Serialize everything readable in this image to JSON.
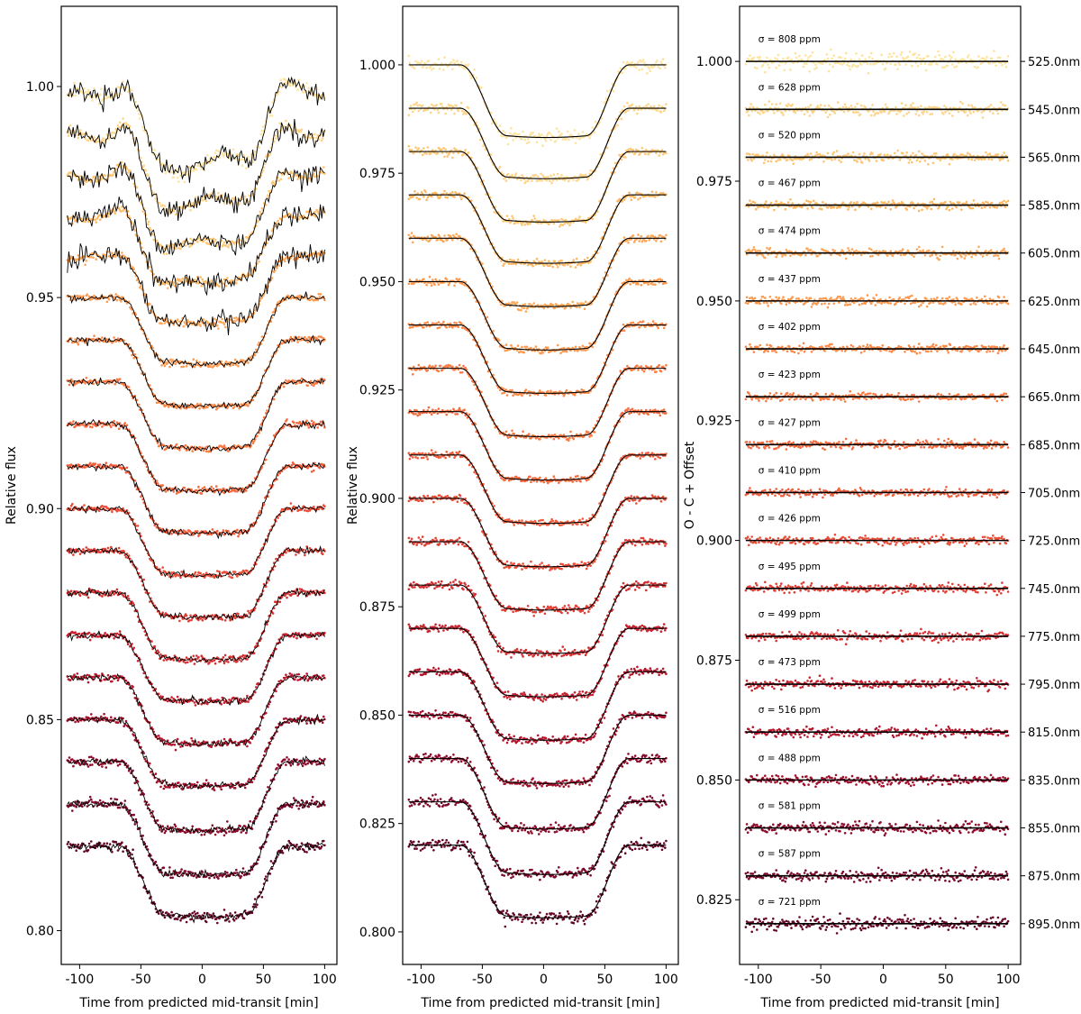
{
  "chart_data": [
    {
      "type": "scatter",
      "title": "",
      "xlabel": "Time from predicted mid-transit [min]",
      "ylabel": "Relative flux",
      "xlim": [
        -115,
        110
      ],
      "ylim": [
        0.792,
        1.019
      ],
      "x_range": [
        -110,
        100
      ],
      "xticks": [
        -100,
        -50,
        0,
        50,
        100
      ],
      "yticks": [
        0.8,
        0.85,
        0.9,
        0.95,
        1.0
      ],
      "ytick_labels": [
        "0.80",
        "0.85",
        "0.90",
        "0.95",
        "1.00"
      ],
      "panel": "raw",
      "grid": false,
      "transit": {
        "t1": -68,
        "t2": -30,
        "t3": 35,
        "t4": 70
      },
      "series": [
        {
          "wavelength_nm": 525,
          "baseline": 1.0,
          "depth": 0.017,
          "color": "#fde3a0"
        },
        {
          "wavelength_nm": 545,
          "baseline": 0.99,
          "depth": 0.0165,
          "color": "#fdd48a"
        },
        {
          "wavelength_nm": 565,
          "baseline": 0.98,
          "depth": 0.0165,
          "color": "#fdc674"
        },
        {
          "wavelength_nm": 585,
          "baseline": 0.97,
          "depth": 0.016,
          "color": "#fdb863"
        },
        {
          "wavelength_nm": 605,
          "baseline": 0.96,
          "depth": 0.016,
          "color": "#fca85a"
        },
        {
          "wavelength_nm": 625,
          "baseline": 0.95,
          "depth": 0.016,
          "color": "#fc9a51"
        },
        {
          "wavelength_nm": 645,
          "baseline": 0.94,
          "depth": 0.016,
          "color": "#fb8a49"
        },
        {
          "wavelength_nm": 665,
          "baseline": 0.93,
          "depth": 0.016,
          "color": "#f97b43"
        },
        {
          "wavelength_nm": 685,
          "baseline": 0.92,
          "depth": 0.016,
          "color": "#f66b3e"
        },
        {
          "wavelength_nm": 705,
          "baseline": 0.91,
          "depth": 0.016,
          "color": "#f15c3a"
        },
        {
          "wavelength_nm": 725,
          "baseline": 0.9,
          "depth": 0.016,
          "color": "#ea4d37"
        },
        {
          "wavelength_nm": 745,
          "baseline": 0.89,
          "depth": 0.016,
          "color": "#e03e35"
        },
        {
          "wavelength_nm": 775,
          "baseline": 0.88,
          "depth": 0.016,
          "color": "#d53032"
        },
        {
          "wavelength_nm": 795,
          "baseline": 0.87,
          "depth": 0.016,
          "color": "#c62330"
        },
        {
          "wavelength_nm": 815,
          "baseline": 0.86,
          "depth": 0.016,
          "color": "#b5182e"
        },
        {
          "wavelength_nm": 835,
          "baseline": 0.85,
          "depth": 0.016,
          "color": "#a2102c"
        },
        {
          "wavelength_nm": 855,
          "baseline": 0.84,
          "depth": 0.0165,
          "color": "#8e0b2b"
        },
        {
          "wavelength_nm": 875,
          "baseline": 0.83,
          "depth": 0.017,
          "color": "#7a0829"
        },
        {
          "wavelength_nm": 895,
          "baseline": 0.82,
          "depth": 0.017,
          "color": "#650626"
        }
      ]
    },
    {
      "type": "scatter",
      "title": "",
      "xlabel": "Time from predicted mid-transit [min]",
      "ylabel": "Relative flux",
      "xlim": [
        -115,
        110
      ],
      "ylim": [
        0.7925,
        1.0135
      ],
      "x_range": [
        -110,
        100
      ],
      "xticks": [
        -100,
        -50,
        0,
        50,
        100
      ],
      "yticks": [
        0.8,
        0.825,
        0.85,
        0.875,
        0.9,
        0.925,
        0.95,
        0.975,
        1.0
      ],
      "ytick_labels": [
        "0.800",
        "0.825",
        "0.850",
        "0.875",
        "0.900",
        "0.925",
        "0.950",
        "0.975",
        "1.000"
      ],
      "panel": "detrended",
      "grid": false,
      "transit": {
        "t1": -68,
        "t2": -30,
        "t3": 35,
        "t4": 70
      },
      "depths": [
        0.017,
        0.0165,
        0.0165,
        0.016,
        0.016,
        0.016,
        0.016,
        0.016,
        0.016,
        0.016,
        0.016,
        0.016,
        0.016,
        0.016,
        0.016,
        0.016,
        0.0165,
        0.017,
        0.017
      ]
    },
    {
      "type": "scatter",
      "title": "",
      "xlabel": "Time from predicted mid-transit [min]",
      "ylabel": "O - C + Offset",
      "xlim": [
        -115,
        110
      ],
      "ylim": [
        0.8115,
        1.0115
      ],
      "x_range": [
        -110,
        100
      ],
      "xticks": [
        -100,
        -50,
        0,
        50,
        100
      ],
      "yticks": [
        0.825,
        0.85,
        0.875,
        0.9,
        0.925,
        0.95,
        0.975,
        1.0
      ],
      "ytick_labels": [
        "0.825",
        "0.850",
        "0.875",
        "0.900",
        "0.925",
        "0.950",
        "0.975",
        "1.000"
      ],
      "panel": "residuals",
      "grid": false,
      "sigma_ppm": [
        808,
        628,
        520,
        467,
        474,
        437,
        402,
        423,
        427,
        410,
        426,
        495,
        499,
        473,
        516,
        488,
        581,
        587,
        721
      ],
      "sigma_labels": [
        "σ = 808 ppm",
        "σ = 628 ppm",
        "σ = 520 ppm",
        "σ = 467 ppm",
        "σ = 474 ppm",
        "σ = 437 ppm",
        "σ = 402 ppm",
        "σ = 423 ppm",
        "σ = 427 ppm",
        "σ = 410 ppm",
        "σ = 426 ppm",
        "σ = 495 ppm",
        "σ = 499 ppm",
        "σ = 473 ppm",
        "σ = 516 ppm",
        "σ = 488 ppm",
        "σ = 581 ppm",
        "σ = 587 ppm",
        "σ = 721 ppm"
      ],
      "wavelength_labels": [
        "525.0nm",
        "545.0nm",
        "565.0nm",
        "585.0nm",
        "605.0nm",
        "625.0nm",
        "645.0nm",
        "665.0nm",
        "685.0nm",
        "705.0nm",
        "725.0nm",
        "745.0nm",
        "775.0nm",
        "795.0nm",
        "815.0nm",
        "835.0nm",
        "855.0nm",
        "875.0nm",
        "895.0nm"
      ]
    }
  ]
}
